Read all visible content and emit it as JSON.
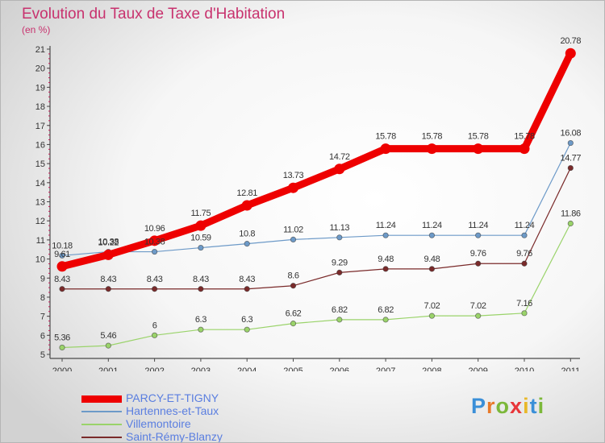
{
  "title": "Evolution du Taux de Taxe d'Habitation",
  "unit": "(en %)",
  "brand": {
    "letters": [
      {
        "ch": "P",
        "color": "#3a8fd8"
      },
      {
        "ch": "r",
        "color": "#e87a2a"
      },
      {
        "ch": "o",
        "color": "#7cb83a"
      },
      {
        "ch": "x",
        "color": "#e8363a"
      },
      {
        "ch": "i",
        "color": "#e8b82a"
      },
      {
        "ch": "t",
        "color": "#3a8fd8"
      },
      {
        "ch": "i",
        "color": "#7cb83a"
      }
    ]
  },
  "chart_data": {
    "type": "line",
    "x": [
      "2000",
      "2001",
      "2002",
      "2003",
      "2004",
      "2005",
      "2006",
      "2007",
      "2008",
      "2009",
      "2010",
      "2011"
    ],
    "ylim": [
      5,
      21
    ],
    "yticks": [
      "5",
      "6",
      "7",
      "8",
      "9",
      "10",
      "11",
      "12",
      "13",
      "14",
      "15",
      "16",
      "17",
      "18",
      "19",
      "20",
      "21"
    ],
    "grid": false,
    "legend_position": "bottom-left",
    "series": [
      {
        "name": "PARCY-ET-TIGNY",
        "color": "#ee0000",
        "values": [
          9.61,
          10.22,
          10.96,
          11.75,
          12.81,
          13.73,
          14.72,
          15.78,
          15.78,
          15.78,
          15.78,
          20.78
        ],
        "labels": [
          "9.61",
          "10.22",
          "10.96",
          "11.75",
          "12.81",
          "13.73",
          "14.72",
          "15.78",
          "15.78",
          "15.78",
          "15.78",
          "20.78"
        ]
      },
      {
        "name": "Hartennes-et-Taux",
        "color": "#6d9ac8",
        "values": [
          10.18,
          10.38,
          10.38,
          10.59,
          10.8,
          11.02,
          11.13,
          11.24,
          11.24,
          11.24,
          11.24,
          16.08
        ],
        "labels": [
          "10.18",
          "10.38",
          "10.38",
          "10.59",
          "10.8",
          "11.02",
          "11.13",
          "11.24",
          "11.24",
          "11.24",
          "11.24",
          "16.08"
        ]
      },
      {
        "name": "Villemontoire",
        "color": "#9ad36a",
        "values": [
          5.36,
          5.46,
          6,
          6.3,
          6.3,
          6.62,
          6.82,
          6.82,
          7.02,
          7.02,
          7.16,
          11.86
        ],
        "labels": [
          "5.36",
          "5.46",
          "6",
          "6.3",
          "6.3",
          "6.62",
          "6.82",
          "6.82",
          "7.02",
          "7.02",
          "7.16",
          "11.86"
        ]
      },
      {
        "name": "Saint-Rémy-Blanzy",
        "color": "#7a2a2a",
        "values": [
          8.43,
          8.43,
          8.43,
          8.43,
          8.43,
          8.6,
          9.29,
          9.48,
          9.48,
          9.76,
          9.76,
          14.77
        ],
        "labels": [
          "8.43",
          "8.43",
          "8.43",
          "8.43",
          "8.43",
          "8.6",
          "9.29",
          "9.48",
          "9.48",
          "9.76",
          "9.76",
          "14.77"
        ]
      }
    ]
  }
}
